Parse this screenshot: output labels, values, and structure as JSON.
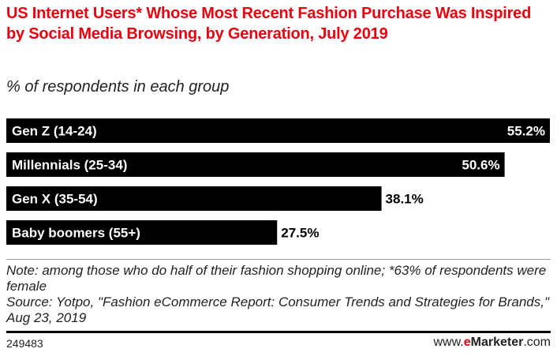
{
  "chart_data": {
    "type": "bar",
    "orientation": "horizontal",
    "title": "US Internet Users* Whose Most Recent Fashion Purchase Was Inspired by Social Media Browsing, by Generation, July 2019",
    "subtitle": "% of respondents in each group",
    "categories": [
      "Gen Z (14-24)",
      "Millennials (25-34)",
      "Gen X (35-54)",
      "Baby boomers (55+)"
    ],
    "values": [
      55.2,
      50.6,
      38.1,
      27.5
    ],
    "value_labels": [
      "55.2%",
      "50.6%",
      "38.1%",
      "27.5%"
    ],
    "xlim": [
      0,
      55.2
    ],
    "grid": false,
    "bar_color": "#000000",
    "title_color": "#e8000f"
  },
  "footer": {
    "note": "Note: among those who do half of their fashion shopping online; *63% of respondents were female",
    "source": "Source: Yotpo, \"Fashion eCommerce Report: Consumer Trends and Strategies for Brands,\" Aug 23, 2019",
    "chart_id": "249483",
    "logo_prefix": "www.",
    "logo_e": "e",
    "logo_brand": "Marketer",
    "logo_suffix": ".com"
  }
}
